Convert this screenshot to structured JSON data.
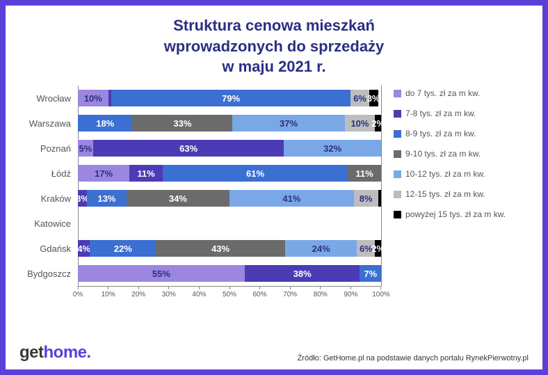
{
  "frame_border_color": "#5b3fd6",
  "title": {
    "lines": [
      "Struktura cenowa mieszkań",
      "wprowadzonych do sprzedaży",
      "w maju 2021 r."
    ],
    "color": "#2b2e83",
    "fontsize": 22
  },
  "chart": {
    "type": "stacked-bar-horizontal",
    "xlim": [
      0,
      100
    ],
    "xtick_step": 10,
    "xtick_suffix": "%",
    "grid_color": "#888888",
    "ylabel_fontsize": 13,
    "ylabel_color": "#555555",
    "bar_label_fontsize": 13,
    "categories": [
      {
        "key": "s1",
        "label": "do 7 tys. zł za m kw.",
        "color": "#9b86e0"
      },
      {
        "key": "s2",
        "label": "7-8 tys. zł za m kw.",
        "color": "#4b3bb5"
      },
      {
        "key": "s3",
        "label": "8-9 tys. zł za m kw.",
        "color": "#3b6fd1"
      },
      {
        "key": "s4",
        "label": "9-10 tys. zł za m kw.",
        "color": "#6b6b6b"
      },
      {
        "key": "s5",
        "label": "10-12 tys. zł za m kw.",
        "color": "#7aa8e6"
      },
      {
        "key": "s6",
        "label": "12-15 tys. zł za m kw.",
        "color": "#bdbdbd"
      },
      {
        "key": "s7",
        "label": "powyżej 15 tys. zł za m kw.",
        "color": "#000000"
      }
    ],
    "rows": [
      {
        "label": "Wrocław",
        "values": {
          "s1": 10,
          "s2": 1,
          "s3": 79,
          "s4": 0,
          "s5": 0,
          "s6": 6,
          "s7": 3
        }
      },
      {
        "label": "Warszawa",
        "values": {
          "s1": 0,
          "s2": 0,
          "s3": 18,
          "s4": 33,
          "s5": 37,
          "s6": 10,
          "s7": 2
        }
      },
      {
        "label": "Poznań",
        "values": {
          "s1": 5,
          "s2": 63,
          "s3": 0,
          "s4": 0,
          "s5": 32,
          "s6": 0,
          "s7": 0
        }
      },
      {
        "label": "Łódź",
        "values": {
          "s1": 17,
          "s2": 11,
          "s3": 61,
          "s4": 11,
          "s5": 0,
          "s6": 0,
          "s7": 0
        }
      },
      {
        "label": "Kraków",
        "values": {
          "s1": 0,
          "s2": 3,
          "s3": 13,
          "s4": 34,
          "s5": 41,
          "s6": 8,
          "s7": 1
        }
      },
      {
        "label": "Katowice",
        "values": {
          "s1": 0,
          "s2": 0,
          "s3": 0,
          "s4": 0,
          "s5": 0,
          "s6": 0,
          "s7": 0
        }
      },
      {
        "label": "Gdańsk",
        "values": {
          "s1": 0,
          "s2": 4,
          "s3": 22,
          "s4": 43,
          "s5": 24,
          "s6": 6,
          "s7": 2
        }
      },
      {
        "label": "Bydgoszcz",
        "values": {
          "s1": 55,
          "s2": 38,
          "s3": 7,
          "s4": 0,
          "s5": 0,
          "s6": 0,
          "s7": 0
        }
      }
    ],
    "label_hide_threshold": 2,
    "label_dark_on": [
      "s1",
      "s5",
      "s6"
    ],
    "label_light_color": "#ffffff",
    "label_dark_color": "#2b2e83"
  },
  "legend": {
    "fontsize": 12,
    "color": "#555555"
  },
  "logo": {
    "text_get": "get",
    "text_home": "home",
    "text_dot": ".",
    "color_get": "#3a3a3a",
    "color_home": "#5b3fd6",
    "color_dot": "#5b3fd6",
    "fontsize": 24
  },
  "source": {
    "text": "Źródło: GetHome.pl na podstawie danych portalu RynekPierwotny.pl",
    "fontsize": 11
  }
}
